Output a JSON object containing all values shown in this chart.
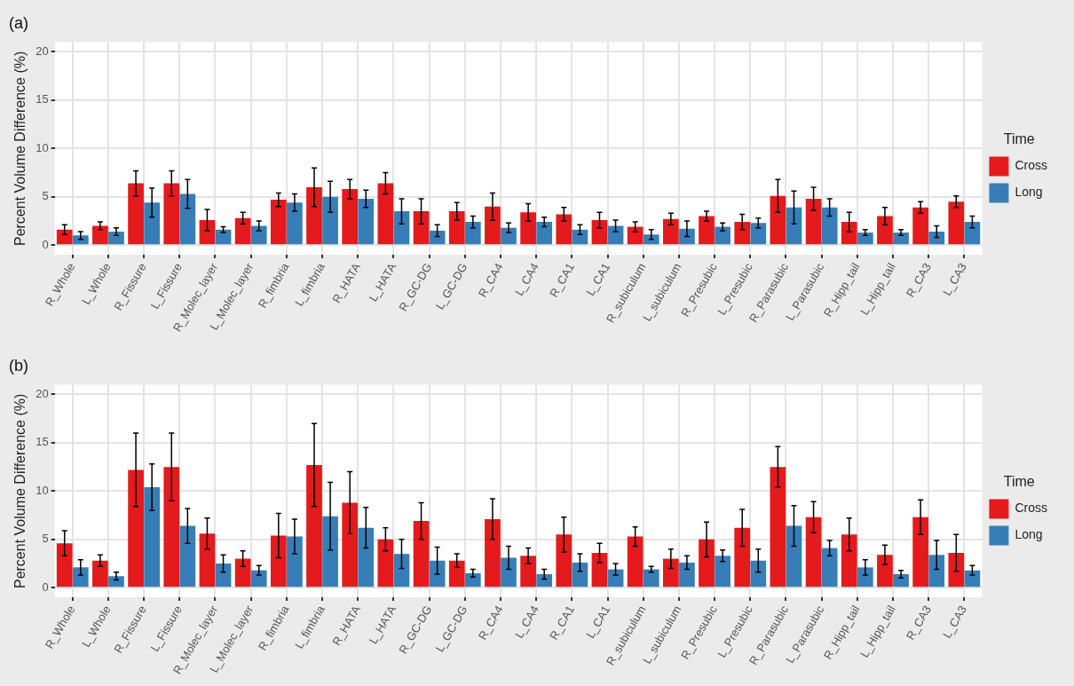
{
  "chart_data": [
    {
      "type": "bar",
      "title": "(a)",
      "ylabel": "Percent Volume Difference (%)",
      "legend_title": "Time",
      "legend": "right",
      "grid": true,
      "ylim": [
        -1,
        21
      ],
      "yticks": [
        0,
        5,
        10,
        15,
        20
      ],
      "categories": [
        "R_Whole",
        "L_Whole",
        "R_Fissure",
        "L_Fissure",
        "R_Molec_layer",
        "L_Molec_layer",
        "R_fimbria",
        "L_fimbria",
        "R_HATA",
        "L_HATA",
        "R_GC-DG",
        "L_GC-DG",
        "R_CA4",
        "L_CA4",
        "R_CA1",
        "L_CA1",
        "R_subiculum",
        "L_subiculum",
        "R_Presubic",
        "L_Presubic",
        "R_Parasubic",
        "L_Parasubic",
        "R_Hipp_tail",
        "L_Hipp_tail",
        "R_CA3",
        "L_CA3"
      ],
      "series": [
        {
          "name": "Cross",
          "color": "#e41a1c",
          "values": [
            1.6,
            2.0,
            6.4,
            6.4,
            2.6,
            2.8,
            4.7,
            6.0,
            5.8,
            6.4,
            3.5,
            3.5,
            4.0,
            3.4,
            3.2,
            2.6,
            1.9,
            2.7,
            3.0,
            2.4,
            5.1,
            4.8,
            2.4,
            3.0,
            3.9,
            4.5
          ],
          "errors": [
            0.5,
            0.4,
            1.3,
            1.3,
            1.1,
            0.6,
            0.7,
            2.0,
            1.0,
            1.1,
            1.3,
            0.9,
            1.4,
            0.9,
            0.7,
            0.8,
            0.5,
            0.6,
            0.5,
            0.8,
            1.7,
            1.2,
            1.0,
            0.9,
            0.6,
            0.6
          ]
        },
        {
          "name": "Long",
          "color": "#377eb8",
          "values": [
            1.0,
            1.4,
            4.4,
            5.3,
            1.6,
            2.0,
            4.4,
            5.0,
            4.8,
            3.5,
            1.5,
            2.4,
            1.8,
            2.4,
            1.6,
            2.0,
            1.1,
            1.7,
            1.9,
            2.3,
            3.9,
            3.9,
            1.3,
            1.3,
            1.4,
            2.4
          ],
          "errors": [
            0.4,
            0.4,
            1.5,
            1.5,
            0.3,
            0.5,
            0.9,
            1.6,
            0.9,
            1.3,
            0.6,
            0.6,
            0.5,
            0.5,
            0.5,
            0.6,
            0.5,
            0.8,
            0.4,
            0.5,
            1.7,
            0.9,
            0.3,
            0.3,
            0.6,
            0.6
          ]
        }
      ]
    },
    {
      "type": "bar",
      "title": "(b)",
      "ylabel": "Percent Volume Difference (%)",
      "legend_title": "Time",
      "legend": "right",
      "grid": true,
      "ylim": [
        -1,
        21
      ],
      "yticks": [
        0,
        5,
        10,
        15,
        20
      ],
      "categories": [
        "R_Whole",
        "L_Whole",
        "R_Fissure",
        "L_Fissure",
        "R_Molec_layer",
        "L_Molec_layer",
        "R_fimbria",
        "L_fimbria",
        "R_HATA",
        "L_HATA",
        "R_GC-DG",
        "L_GC-DG",
        "R_CA4",
        "L_CA4",
        "R_CA1",
        "L_CA1",
        "R_subiculum",
        "L_subiculum",
        "R_Presubic",
        "L_Presubic",
        "R_Parasubic",
        "L_Parasubic",
        "R_Hipp_tail",
        "L_Hipp_tail",
        "R_CA3",
        "L_CA3"
      ],
      "series": [
        {
          "name": "Cross",
          "color": "#e41a1c",
          "values": [
            4.6,
            2.8,
            12.2,
            12.5,
            5.6,
            3.0,
            5.4,
            12.7,
            8.8,
            5.0,
            6.9,
            2.8,
            7.1,
            3.3,
            5.5,
            3.6,
            5.3,
            3.0,
            5.0,
            6.2,
            12.5,
            7.3,
            5.5,
            3.4,
            7.3,
            3.6
          ],
          "errors": [
            1.3,
            0.6,
            3.8,
            3.5,
            1.6,
            0.8,
            2.3,
            4.3,
            3.2,
            1.2,
            1.9,
            0.7,
            2.1,
            0.8,
            1.8,
            1.0,
            1.0,
            1.0,
            1.8,
            1.9,
            2.1,
            1.6,
            1.7,
            1.0,
            1.8,
            1.9
          ]
        },
        {
          "name": "Long",
          "color": "#377eb8",
          "values": [
            2.1,
            1.2,
            10.4,
            6.4,
            2.5,
            1.8,
            5.3,
            7.4,
            6.2,
            3.5,
            2.8,
            1.5,
            3.1,
            1.4,
            2.6,
            1.9,
            1.9,
            2.6,
            3.3,
            2.8,
            6.4,
            4.1,
            2.1,
            1.4,
            3.4,
            1.8
          ],
          "errors": [
            0.8,
            0.4,
            2.4,
            1.8,
            0.9,
            0.5,
            1.8,
            3.5,
            2.1,
            1.5,
            1.4,
            0.4,
            1.2,
            0.5,
            0.9,
            0.6,
            0.3,
            0.7,
            0.6,
            1.2,
            2.1,
            0.8,
            0.8,
            0.4,
            1.5,
            0.5
          ]
        }
      ]
    }
  ]
}
